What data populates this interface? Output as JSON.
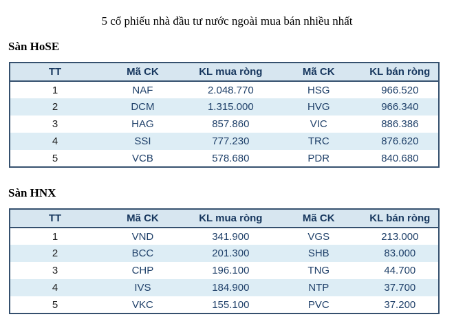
{
  "title": "5 cổ phiếu nhà đầu tư nước ngoài mua bán nhiều nhất",
  "colors": {
    "header_bg": "#d7e6f0",
    "alt_row_bg": "#ddedf5",
    "table_border": "#35506e",
    "header_text": "#17375e",
    "data_text": "#20416a",
    "rank_text": "#1c1c1c"
  },
  "sections": [
    {
      "heading": "Sàn HoSE",
      "columns": [
        "TT",
        "Mã CK",
        "KL mua ròng",
        "Mã CK",
        "KL bán ròng"
      ],
      "rows": [
        [
          "1",
          "NAF",
          "2.048.770",
          "HSG",
          "966.520"
        ],
        [
          "2",
          "DCM",
          "1.315.000",
          "HVG",
          "966.340"
        ],
        [
          "3",
          "HAG",
          "857.860",
          "VIC",
          "886.386"
        ],
        [
          "4",
          "SSI",
          "777.230",
          "TRC",
          "876.620"
        ],
        [
          "5",
          "VCB",
          "578.680",
          "PDR",
          "840.680"
        ]
      ]
    },
    {
      "heading": "Sàn HNX",
      "columns": [
        "TT",
        "Mã CK",
        "KL mua ròng",
        "Mã CK",
        "KL bán ròng"
      ],
      "rows": [
        [
          "1",
          "VND",
          "341.900",
          "VGS",
          "213.000"
        ],
        [
          "2",
          "BCC",
          "201.300",
          "SHB",
          "83.000"
        ],
        [
          "3",
          "CHP",
          "196.100",
          "TNG",
          "44.700"
        ],
        [
          "4",
          "IVS",
          "184.900",
          "NTP",
          "37.700"
        ],
        [
          "5",
          "VKC",
          "155.100",
          "PVC",
          "37.200"
        ]
      ]
    }
  ]
}
